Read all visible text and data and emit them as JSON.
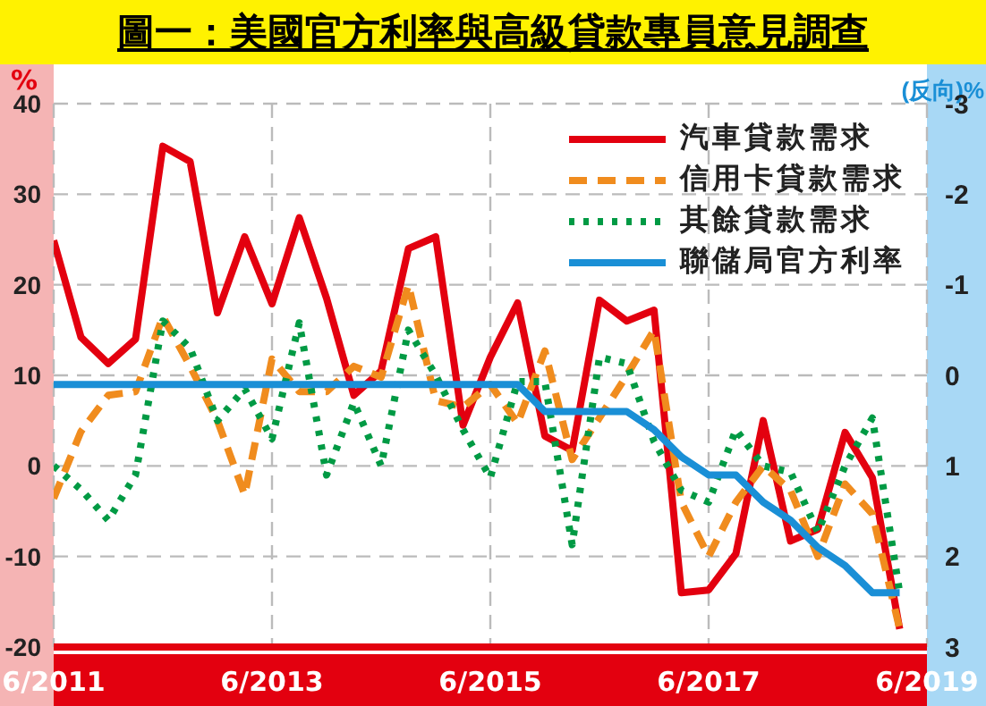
{
  "chart_data": {
    "type": "line",
    "title": "圖一：美國官方利率與高級貸款專員意見調查",
    "ylabel": "%",
    "y2label": "(反向)%",
    "x": [
      "2011-06",
      "2011-09",
      "2011-12",
      "2012-03",
      "2012-06",
      "2012-09",
      "2012-12",
      "2013-03",
      "2013-06",
      "2013-09",
      "2013-12",
      "2014-03",
      "2014-06",
      "2014-09",
      "2014-12",
      "2015-03",
      "2015-06",
      "2015-09",
      "2015-12",
      "2016-03",
      "2016-06",
      "2016-09",
      "2016-12",
      "2017-03",
      "2017-06",
      "2017-09",
      "2017-12",
      "2018-03",
      "2018-06",
      "2018-09",
      "2018-12",
      "2019-03"
    ],
    "series": [
      {
        "name": "汽車貸款需求",
        "color": "#e3000f",
        "line_style": "solid",
        "values": [
          24.9,
          14.2,
          11.3,
          14,
          35.3,
          33.6,
          16.9,
          25.3,
          17.9,
          27.4,
          18.5,
          7.8,
          10.5,
          24,
          25.3,
          4.5,
          12,
          18,
          3.3,
          1.7,
          18.3,
          16,
          17.2,
          -14,
          -13.7,
          -9.7,
          5,
          -8.3,
          -7,
          3.7,
          -1.3,
          -18
        ]
      },
      {
        "name": "信用卡貸款需求",
        "color": "#f08c1e",
        "line_style": "dashed",
        "values": [
          -3.6,
          3.8,
          7.8,
          8.2,
          16.5,
          11,
          5,
          -3.2,
          11.8,
          8.2,
          8.2,
          11,
          9.8,
          20,
          7.2,
          6.5,
          9,
          4.7,
          12.7,
          0.7,
          5.3,
          10,
          15,
          -4,
          -10,
          -4,
          0,
          -2.7,
          -10,
          -2,
          -5.3,
          -18
        ]
      },
      {
        "name": "其餘貸款需求",
        "color": "#009a44",
        "line_style": "dotted",
        "values": [
          0,
          -2.6,
          -6,
          -1,
          16,
          13,
          5,
          8.5,
          3,
          15.8,
          -1,
          7,
          0,
          15,
          10,
          4,
          -1.3,
          9.3,
          9.3,
          -8.7,
          12,
          11.3,
          2.7,
          -2.7,
          -4,
          4,
          0,
          -0.7,
          -7.3,
          0,
          5.3,
          -14
        ]
      },
      {
        "name": "聯儲局官方利率",
        "color": "#1a8fd6",
        "line_style": "solid",
        "axis": "y2",
        "values": [
          0.1,
          0.1,
          0.1,
          0.1,
          0.1,
          0.1,
          0.1,
          0.1,
          0.1,
          0.1,
          0.1,
          0.1,
          0.1,
          0.1,
          0.1,
          0.1,
          0.1,
          0.1,
          0.4,
          0.4,
          0.4,
          0.4,
          0.6,
          0.9,
          1.1,
          1.1,
          1.4,
          1.6,
          1.9,
          2.1,
          2.4,
          2.4
        ]
      }
    ],
    "xlim": [
      "2011-06",
      "2019-06"
    ],
    "xticks": [
      {
        "value": "2011-06",
        "label": "6/2011"
      },
      {
        "value": "2013-06",
        "label": "6/2013"
      },
      {
        "value": "2015-06",
        "label": "6/2015"
      },
      {
        "value": "2017-06",
        "label": "6/2017"
      },
      {
        "value": "2019-06",
        "label": "6/2019"
      }
    ],
    "ylim": [
      -20,
      40
    ],
    "yticks": [
      -20,
      -10,
      0,
      10,
      20,
      30,
      40
    ],
    "y2lim": [
      3,
      -3
    ],
    "y2ticks": [
      -3,
      -2,
      -1,
      0,
      1,
      2,
      3
    ],
    "grid": true,
    "legend": "top right",
    "marker": "none"
  }
}
